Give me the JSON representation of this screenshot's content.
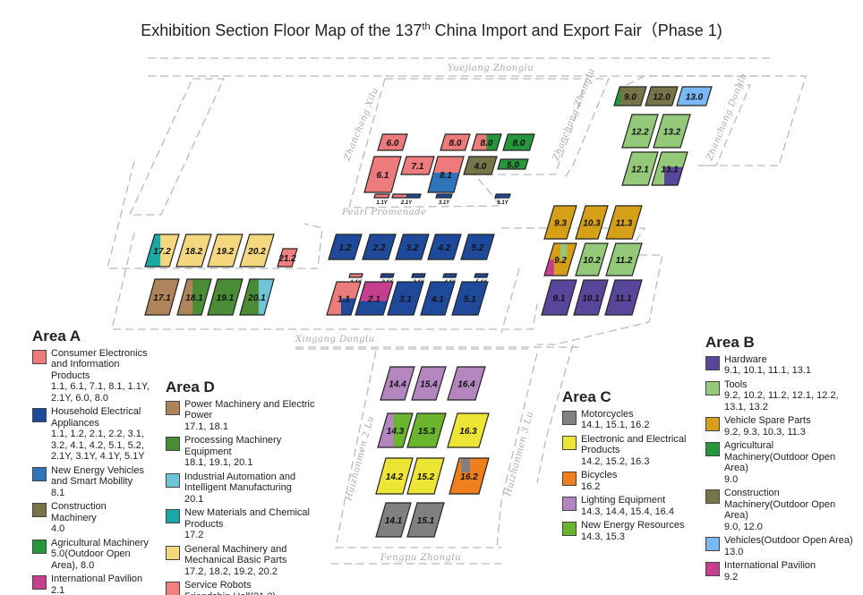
{
  "title": {
    "prefix": "Exhibition Section Floor Map of the 137",
    "sup": "th",
    "suffix": " China Import and Export Fair（Phase 1)"
  },
  "roads": {
    "yuejiang": "Yuejiang Zhonglu",
    "zhanchang_xi": "Zhanchang Xilu",
    "zhanchang_zhong": "Zhanchang Zhonglu",
    "zhanchang_dong": "Zhanchang Donglu",
    "pearl": "Pearl Promenade",
    "xingang": "Xingang Donglu",
    "huizhanmen2": "Huizhanmen 2 Lu",
    "huizhanmen3": "Huizhanmen 3 Lu",
    "fengpu": "Fengpu Zhonglu"
  },
  "colors": {
    "consumer": "#ee7b7b",
    "household": "#1f4a9b",
    "nev": "#2f74bb",
    "construction": "#787449",
    "agri": "#26963b",
    "intl": "#c63f8e",
    "power": "#b0845a",
    "processing": "#4a8c36",
    "automation": "#6fc5d6",
    "materials": "#18a8a6",
    "general": "#f5d77f",
    "robots": "#f28080",
    "hardware": "#574699",
    "tools": "#94c97a",
    "spare": "#d5a017",
    "vehicles": "#7ab8f5",
    "moto": "#808080",
    "electronic": "#ede535",
    "bicycles": "#ef7e1c",
    "lighting": "#b386bf",
    "newenergy": "#6ab42e"
  },
  "halls": [
    {
      "label": "6.0",
      "colors": [
        "consumer"
      ]
    },
    {
      "label": "8.0",
      "id": "8.0a",
      "colors": [
        "consumer"
      ]
    },
    {
      "label": "8.0",
      "id": "8.0b",
      "colors": [
        "consumer",
        "agri"
      ]
    },
    {
      "label": "8.0",
      "id": "8.0c",
      "colors": [
        "agri"
      ]
    },
    {
      "label": "6.1",
      "colors": [
        "consumer"
      ]
    },
    {
      "label": "7.1",
      "colors": [
        "consumer"
      ]
    },
    {
      "label": "8.1",
      "colors": [
        "nev",
        "consumer"
      ]
    },
    {
      "label": "4.0",
      "colors": [
        "construction"
      ]
    },
    {
      "label": "5.0",
      "colors": [
        "agri"
      ]
    },
    {
      "label": "1.1Y",
      "id": "1.1Ya",
      "colors": [
        "consumer"
      ]
    },
    {
      "label": "2.1Y",
      "id": "2.1Ya",
      "colors": [
        "consumer",
        "household"
      ]
    },
    {
      "label": "3.1Y",
      "id": "3.1Ya",
      "colors": [
        "household"
      ]
    },
    {
      "label": "5.1Y",
      "id": "5.1Ya",
      "colors": [
        "household"
      ]
    },
    {
      "label": "1.2",
      "colors": [
        "household"
      ]
    },
    {
      "label": "2.2",
      "colors": [
        "household"
      ]
    },
    {
      "label": "3.2",
      "colors": [
        "household"
      ]
    },
    {
      "label": "4.2",
      "colors": [
        "household"
      ]
    },
    {
      "label": "5.2",
      "colors": [
        "household"
      ]
    },
    {
      "label": "1.1Y",
      "id": "1.1Yb",
      "colors": [
        "consumer"
      ]
    },
    {
      "label": "2.1Y",
      "id": "2.1Yb",
      "colors": [
        "household"
      ]
    },
    {
      "label": "3.1Y",
      "id": "3.1Yb",
      "colors": [
        "household"
      ]
    },
    {
      "label": "4.1Y",
      "id": "4.1Yb",
      "colors": [
        "household"
      ]
    },
    {
      "label": "5.1Y",
      "id": "5.1Yb",
      "colors": [
        "household"
      ]
    },
    {
      "label": "1.1",
      "colors": [
        "consumer",
        "household"
      ]
    },
    {
      "label": "2.1",
      "colors": [
        "household",
        "intl"
      ]
    },
    {
      "label": "3.1",
      "colors": [
        "household"
      ]
    },
    {
      "label": "4.1",
      "colors": [
        "household"
      ]
    },
    {
      "label": "5.1",
      "colors": [
        "household"
      ]
    },
    {
      "label": "17.2",
      "colors": [
        "materials",
        "general"
      ]
    },
    {
      "label": "18.2",
      "colors": [
        "general"
      ]
    },
    {
      "label": "19.2",
      "colors": [
        "general"
      ]
    },
    {
      "label": "20.2",
      "colors": [
        "general"
      ]
    },
    {
      "label": "21.2",
      "colors": [
        "robots"
      ]
    },
    {
      "label": "17.1",
      "colors": [
        "power"
      ]
    },
    {
      "label": "18.1",
      "colors": [
        "processing",
        "power"
      ]
    },
    {
      "label": "19.1",
      "colors": [
        "processing"
      ]
    },
    {
      "label": "20.1",
      "colors": [
        "automation",
        "processing"
      ]
    },
    {
      "label": "9.0",
      "colors": [
        "construction",
        "agri"
      ]
    },
    {
      "label": "12.0",
      "colors": [
        "construction"
      ]
    },
    {
      "label": "13.0",
      "colors": [
        "vehicles"
      ]
    },
    {
      "label": "12.2",
      "colors": [
        "tools"
      ]
    },
    {
      "label": "13.2",
      "colors": [
        "tools"
      ]
    },
    {
      "label": "12.1",
      "colors": [
        "tools"
      ]
    },
    {
      "label": "13.1",
      "colors": [
        "tools",
        "hardware"
      ]
    },
    {
      "label": "9.3",
      "colors": [
        "spare"
      ]
    },
    {
      "label": "10.3",
      "colors": [
        "spare"
      ]
    },
    {
      "label": "11.3",
      "colors": [
        "spare"
      ]
    },
    {
      "label": "9.2",
      "colors": [
        "spare",
        "intl",
        "tools"
      ]
    },
    {
      "label": "10.2",
      "colors": [
        "tools"
      ]
    },
    {
      "label": "11.2",
      "colors": [
        "tools"
      ]
    },
    {
      "label": "9.1",
      "colors": [
        "hardware"
      ]
    },
    {
      "label": "10.1",
      "colors": [
        "hardware"
      ]
    },
    {
      "label": "11.1",
      "colors": [
        "hardware"
      ]
    },
    {
      "label": "14.4",
      "colors": [
        "lighting"
      ]
    },
    {
      "label": "15.4",
      "colors": [
        "lighting"
      ]
    },
    {
      "label": "16.4",
      "colors": [
        "lighting"
      ]
    },
    {
      "label": "14.3",
      "colors": [
        "newenergy",
        "lighting"
      ]
    },
    {
      "label": "15.3",
      "colors": [
        "newenergy"
      ]
    },
    {
      "label": "16.3",
      "colors": [
        "electronic"
      ]
    },
    {
      "label": "14.2",
      "colors": [
        "electronic"
      ]
    },
    {
      "label": "15.2",
      "colors": [
        "electronic"
      ]
    },
    {
      "label": "16.2",
      "colors": [
        "bicycles",
        "moto"
      ]
    },
    {
      "label": "14.1",
      "colors": [
        "moto"
      ]
    },
    {
      "label": "15.1",
      "colors": [
        "moto"
      ]
    }
  ],
  "legend": {
    "areaA": {
      "title": "Area A",
      "items": [
        {
          "color": "consumer",
          "name": "Consumer Electronics and Information Products",
          "halls": "1.1, 6.1, 7.1, 8.1, 1.1Y, 2.1Y, 6.0, 8.0"
        },
        {
          "color": "household",
          "name": "Household Electrical Appliances",
          "halls": "1.1, 1.2, 2.1, 2.2, 3.1, 3.2, 4.1, 4.2, 5.1, 5.2, 2.1Y, 3.1Y, 4.1Y, 5.1Y"
        },
        {
          "color": "nev",
          "name": "New Energy Vehicles and Smart Mobility",
          "halls": "8.1"
        },
        {
          "color": "construction",
          "name": "Construction Machinery",
          "halls": "4.0"
        },
        {
          "color": "agri",
          "name": "Agricultural Machinery",
          "halls": "5.0(Outdoor Open Area), 8.0"
        },
        {
          "color": "intl",
          "name": "International Pavilion",
          "halls": "2.1"
        }
      ]
    },
    "areaD": {
      "title": "Area D",
      "items": [
        {
          "color": "power",
          "name": "Power Machinery and Electric Power",
          "halls": "17.1, 18.1"
        },
        {
          "color": "processing",
          "name": "Processing Machinery Equipment",
          "halls": "18.1, 19.1, 20.1"
        },
        {
          "color": "automation",
          "name": "Industrial Automation and Intelligent Manufacturing",
          "halls": "20.1"
        },
        {
          "color": "materials",
          "name": "New Materials and Chemical Products",
          "halls": "17.2"
        },
        {
          "color": "general",
          "name": "General Machinery and Mechanical Basic Parts",
          "halls": "17.2, 18.2, 19.2, 20.2"
        },
        {
          "color": "robots",
          "name": "Service Robots",
          "halls": "Friendship Hall(21.2)"
        }
      ]
    },
    "areaC": {
      "title": "Area C",
      "items": [
        {
          "color": "moto",
          "name": "Motorcycles",
          "halls": "14.1, 15.1, 16.2"
        },
        {
          "color": "electronic",
          "name": "Electronic and Electrical Products",
          "halls": "14.2, 15.2, 16.3"
        },
        {
          "color": "bicycles",
          "name": "Bicycles",
          "halls": "16.2"
        },
        {
          "color": "lighting",
          "name": "Lighting Equipment",
          "halls": "14.3, 14.4, 15.4, 16.4"
        },
        {
          "color": "newenergy",
          "name": "New Energy Resources",
          "halls": "14.3, 15.3"
        }
      ]
    },
    "areaB": {
      "title": "Area B",
      "items": [
        {
          "color": "hardware",
          "name": "Hardware",
          "halls": "9.1, 10.1, 11.1, 13.1"
        },
        {
          "color": "tools",
          "name": "Tools",
          "halls": "9.2, 10.2, 11.2, 12.1, 12.2, 13.1, 13.2"
        },
        {
          "color": "spare",
          "name": "Vehicle Spare Parts",
          "halls": "9.2, 9.3, 10.3, 11.3"
        },
        {
          "color": "agri",
          "name": "Agricultural Machinery(Outdoor Open Area)",
          "halls": "9.0"
        },
        {
          "color": "construction",
          "name": "Construction Machinery(Outdoor Open Area)",
          "halls": "9.0, 12.0"
        },
        {
          "color": "vehicles",
          "name": "Vehicles(Outdoor Open Area)",
          "halls": "13.0"
        },
        {
          "color": "intl",
          "name": "International Pavilion",
          "halls": "9.2"
        }
      ]
    }
  }
}
